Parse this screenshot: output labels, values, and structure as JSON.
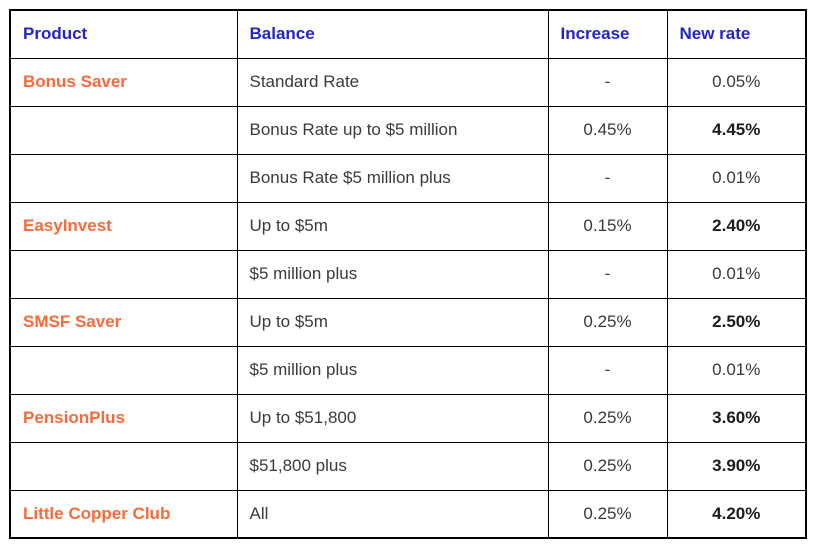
{
  "colors": {
    "header-blue": "#2323cc",
    "product-orange": "#f86a3c",
    "body-text": "#3a3a3a",
    "strong-text": "#1c1c1c",
    "border-color": "#000000",
    "bg": "#ffffff"
  },
  "table": {
    "columns": [
      "Product",
      "Balance",
      "Increase",
      "New rate"
    ],
    "rows": [
      {
        "product": "Bonus Saver",
        "balance": "Standard Rate",
        "increase": "-",
        "new_rate": "0.05%"
      },
      {
        "product": "",
        "balance": "Bonus Rate up to $5 million",
        "increase": "0.45%",
        "new_rate": "4.45%"
      },
      {
        "product": "",
        "balance": "Bonus Rate $5 million plus",
        "increase": "-",
        "new_rate": "0.01%"
      },
      {
        "product": "EasyInvest",
        "balance": "Up to $5m",
        "increase": "0.15%",
        "new_rate": "2.40%"
      },
      {
        "product": "",
        "balance": "$5 million plus",
        "increase": "-",
        "new_rate": "0.01%"
      },
      {
        "product": "SMSF Saver",
        "balance": "Up to $5m",
        "increase": "0.25%",
        "new_rate": "2.50%"
      },
      {
        "product": "",
        "balance": "$5 million plus",
        "increase": "-",
        "new_rate": "0.01%"
      },
      {
        "product": "PensionPlus",
        "balance": "Up to $51,800",
        "increase": "0.25%",
        "new_rate": "3.60%"
      },
      {
        "product": "",
        "balance": "$51,800 plus",
        "increase": "0.25%",
        "new_rate": "3.90%"
      },
      {
        "product": "Little Copper Club",
        "balance": "All",
        "increase": "0.25%",
        "new_rate": "4.20%"
      }
    ]
  },
  "chart_data": {
    "type": "table",
    "title": "",
    "columns": [
      "Product",
      "Balance",
      "Increase",
      "New rate"
    ],
    "rows": [
      [
        "Bonus Saver",
        "Standard Rate",
        "-",
        "0.05%"
      ],
      [
        "",
        "Bonus Rate up to $5 million",
        "0.45%",
        "4.45%"
      ],
      [
        "",
        "Bonus Rate $5 million plus",
        "-",
        "0.01%"
      ],
      [
        "EasyInvest",
        "Up to $5m",
        "0.15%",
        "2.40%"
      ],
      [
        "",
        "$5 million plus",
        "-",
        "0.01%"
      ],
      [
        "SMSF Saver",
        "Up to $5m",
        "0.25%",
        "2.50%"
      ],
      [
        "",
        "$5 million plus",
        "-",
        "0.01%"
      ],
      [
        "PensionPlus",
        "Up to $51,800",
        "0.25%",
        "3.60%"
      ],
      [
        "",
        "$51,800 plus",
        "0.25%",
        "3.90%"
      ],
      [
        "Little Copper Club",
        "All",
        "0.25%",
        "4.20%"
      ]
    ]
  }
}
